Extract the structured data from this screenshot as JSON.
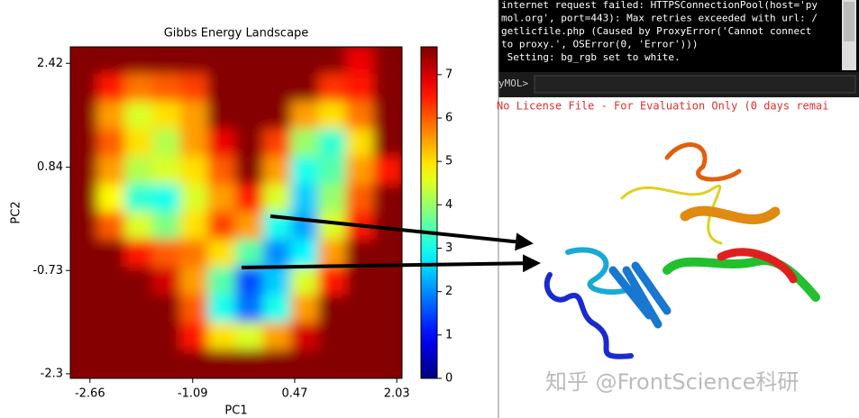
{
  "chart_data": {
    "type": "heatmap",
    "title": "Gibbs Energy Landscape",
    "x_label": "PC1",
    "y_label": "PC2",
    "xlim": [
      -2.96,
      2.11
    ],
    "ylim": [
      -2.37,
      2.67
    ],
    "xticks": [
      -2.66,
      -1.09,
      0.47,
      2.03
    ],
    "yticks": [
      2.42,
      0.84,
      -0.73,
      -2.3
    ],
    "zlim": [
      0,
      7.64
    ],
    "zticks": [
      0,
      1,
      2,
      3,
      4,
      5,
      6,
      7
    ],
    "colormap": "jet",
    "z": [
      [
        7.6,
        7.6,
        7.6,
        7.6,
        7.6,
        7.6,
        7.6,
        7.6,
        7.6,
        7.6,
        6.8,
        7.6
      ],
      [
        7.6,
        6.5,
        5.8,
        6,
        6.2,
        7.6,
        7.6,
        7.6,
        7.6,
        6.3,
        6.5,
        7.6
      ],
      [
        7.6,
        5.5,
        4.5,
        5,
        5.5,
        7.6,
        7.6,
        7.6,
        5.5,
        5,
        5.8,
        7.6
      ],
      [
        7.6,
        6,
        5,
        4.2,
        5.5,
        6.8,
        7.6,
        6.2,
        4,
        3.2,
        5,
        7.6
      ],
      [
        7.6,
        5.5,
        4.2,
        4.5,
        5,
        6,
        7.6,
        5.5,
        3,
        3.5,
        5.5,
        6.5
      ],
      [
        7.6,
        4.8,
        3.2,
        3,
        4.5,
        5.5,
        6.5,
        4.5,
        2.5,
        4,
        6,
        7.6
      ],
      [
        7.6,
        6,
        4.5,
        3.8,
        5,
        6.2,
        5.5,
        3,
        2.2,
        4.5,
        6.5,
        7.6
      ],
      [
        7.6,
        7.6,
        6.5,
        6,
        5.8,
        5,
        3.5,
        2,
        2.8,
        5.5,
        7.6,
        7.6
      ],
      [
        7.6,
        7.6,
        7.6,
        7,
        5.5,
        3.5,
        1.5,
        2.5,
        4.5,
        6.5,
        7.6,
        7.6
      ],
      [
        7.6,
        7.6,
        7.6,
        7.6,
        6,
        3,
        1.8,
        3,
        5.5,
        7.6,
        7.6,
        7.6
      ],
      [
        7.6,
        7.6,
        7.6,
        7.6,
        6.5,
        5,
        4.5,
        5.5,
        7,
        7.6,
        7.6,
        7.6
      ],
      [
        7.6,
        7.6,
        7.6,
        7.6,
        7.6,
        7.6,
        7.6,
        7.6,
        7.6,
        7.6,
        7.6,
        7.6
      ]
    ]
  },
  "pymol": {
    "console": [
      "internet request failed: HTTPSConnectionPool(host='py",
      "mol.org', port=443): Max retries exceeded with url: /",
      "getlicfile.php (Caused by ProxyError('Cannot connect",
      "to proxy.', OSError(0, 'Error')))",
      " Setting: bg_rgb set to white."
    ],
    "prompt": "yMOL>",
    "license_notice": "No License File - For Evaluation Only (0 days remai",
    "watermark": "知乎 @FrontScience科研"
  }
}
